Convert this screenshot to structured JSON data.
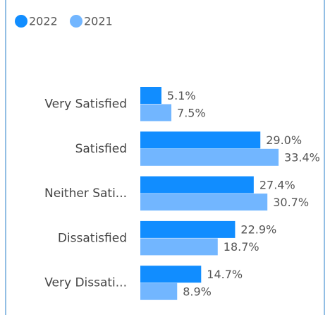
{
  "chart_data": {
    "type": "bar",
    "orientation": "horizontal",
    "categories": [
      "Very Satisfied",
      "Satisfied",
      "Neither Sati...",
      "Dissatisfied",
      "Very Dissati..."
    ],
    "series": [
      {
        "name": "2022",
        "color": "#118dff",
        "values": [
          5.1,
          29.0,
          27.4,
          22.9,
          14.7
        ],
        "value_labels": [
          "5.1%",
          "29.0%",
          "27.4%",
          "22.9%",
          "14.7%"
        ]
      },
      {
        "name": "2021",
        "color": "#72b6ff",
        "values": [
          7.5,
          33.4,
          30.7,
          18.7,
          8.9
        ],
        "value_labels": [
          "7.5%",
          "33.4%",
          "30.7%",
          "18.7%",
          "8.9%"
        ]
      }
    ],
    "legend": "top-left"
  }
}
